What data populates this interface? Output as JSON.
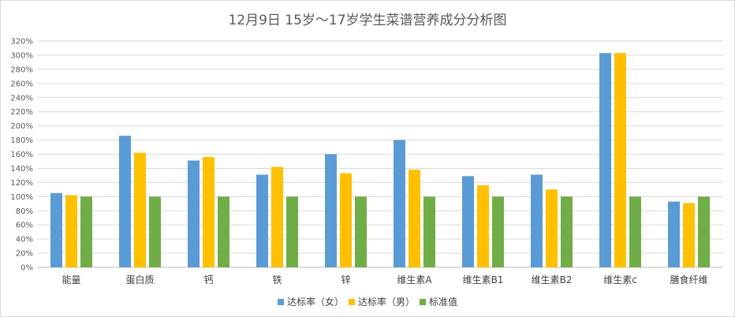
{
  "chart_data": {
    "type": "bar",
    "title": "12月9日 15岁～17岁学生菜谱营养成分分析图",
    "categories": [
      "能量",
      "蛋白质",
      "钙",
      "铁",
      "锌",
      "维生素A",
      "维生素B1",
      "维生素B2",
      "维生素c",
      "膳食纤维"
    ],
    "series": [
      {
        "name": "达标率（女）",
        "color": "#5b9bd5",
        "values": [
          105,
          186,
          151,
          131,
          160,
          180,
          129,
          131,
          303,
          93
        ]
      },
      {
        "name": "达标率（男）",
        "color": "#ffc000",
        "values": [
          102,
          162,
          156,
          142,
          133,
          138,
          116,
          110,
          303,
          91
        ]
      },
      {
        "name": "标准值",
        "color": "#70ad47",
        "values": [
          100,
          100,
          100,
          100,
          100,
          100,
          100,
          100,
          100,
          100
        ]
      }
    ],
    "ylim": [
      0,
      320
    ],
    "ytick_step": 20,
    "ytick_suffix": "%",
    "grid": true,
    "legend": "bottom"
  }
}
